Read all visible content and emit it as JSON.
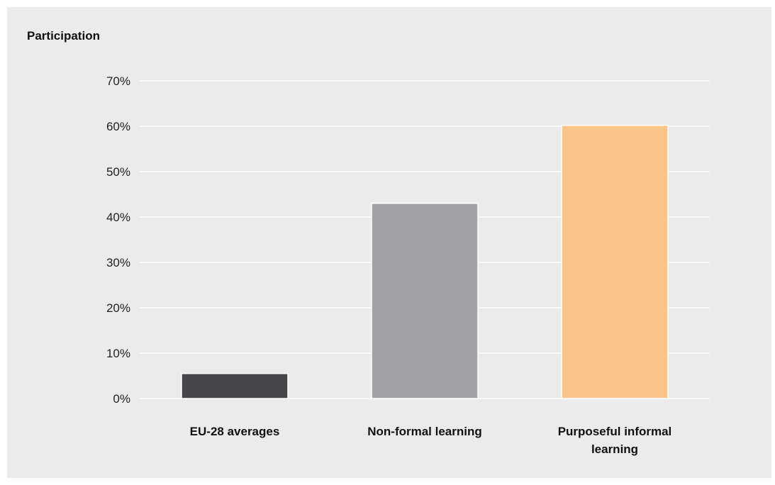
{
  "chart_data": {
    "type": "bar",
    "ylabel": "Participation",
    "categories": [
      "EU-28 averages",
      "Non-formal learning",
      "Purposeful informal learning"
    ],
    "category_lines": [
      [
        "EU-28 averages"
      ],
      [
        "Non-formal learning"
      ],
      [
        "Purposeful informal",
        "learning"
      ]
    ],
    "values": [
      5.5,
      43.0,
      60.2
    ],
    "colors": [
      "#464648",
      "#a2a2a4",
      "#fbc589"
    ],
    "ylim": [
      0,
      70
    ],
    "yticks": [
      0,
      10,
      20,
      30,
      40,
      50,
      60,
      70
    ],
    "ytick_labels": [
      "0%",
      "10%",
      "20%",
      "30%",
      "40%",
      "50%",
      "60%",
      "70%"
    ],
    "grid": true,
    "gridline_color": "#ffffff",
    "background_color": "#ebebeb"
  }
}
